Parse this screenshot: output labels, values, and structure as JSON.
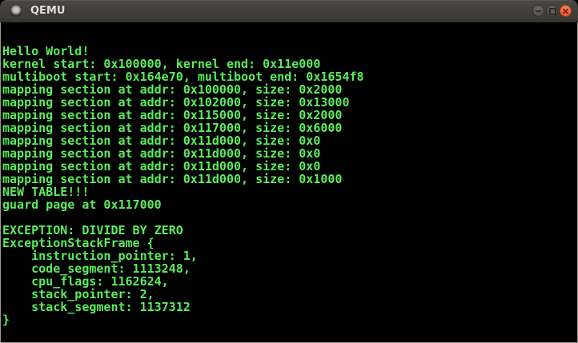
{
  "window": {
    "title": "QEMU",
    "controls": {
      "minimize_label": "minimize",
      "maximize_label": "maximize",
      "close_label": "close"
    },
    "icons": {
      "app": "qemu-window-icon (gray sphere)",
      "minimize": "−",
      "maximize": "▢",
      "close": "✕"
    }
  },
  "colors": {
    "terminal_foreground": "#5cec5c",
    "terminal_background": "#000000",
    "titlebar_background": "#3f3d39",
    "close_button": "#ec6137",
    "window_border": "#9a978f"
  },
  "terminal": {
    "columns": 80,
    "rows": 25,
    "lines": [
      "Hello World!",
      "kernel start: 0x100000, kernel end: 0x11e000",
      "multiboot start: 0x164e70, multiboot end: 0x1654f8",
      "mapping section at addr: 0x100000, size: 0x2000",
      "mapping section at addr: 0x102000, size: 0x13000",
      "mapping section at addr: 0x115000, size: 0x2000",
      "mapping section at addr: 0x117000, size: 0x6000",
      "mapping section at addr: 0x11d000, size: 0x0",
      "mapping section at addr: 0x11d000, size: 0x0",
      "mapping section at addr: 0x11d000, size: 0x0",
      "mapping section at addr: 0x11d000, size: 0x1000",
      "NEW TABLE!!!",
      "guard page at 0x117000",
      "",
      "EXCEPTION: DIVIDE BY ZERO",
      "ExceptionStackFrame {",
      "    instruction_pointer: 1,",
      "    code_segment: 1113248,",
      "    cpu_flags: 1162624,",
      "    stack_pointer: 2,",
      "    stack_segment: 1137312",
      "}"
    ]
  }
}
